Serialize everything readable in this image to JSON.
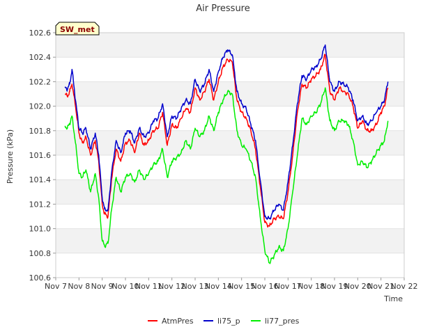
{
  "chart_data": {
    "type": "line",
    "title": "Air Pressure",
    "xlabel": "Time",
    "ylabel": "Pressure (kPa)",
    "ylim": [
      100.6,
      102.6
    ],
    "yticks": [
      "100.6",
      "100.8",
      "101.0",
      "101.2",
      "101.4",
      "101.6",
      "101.8",
      "102.0",
      "102.2",
      "102.4",
      "102.6"
    ],
    "xlim": [
      7,
      22
    ],
    "xticks": [
      {
        "v": 7,
        "label": "Nov 7"
      },
      {
        "v": 8,
        "label": "Nov 8"
      },
      {
        "v": 9,
        "label": "Nov 9"
      },
      {
        "v": 10,
        "label": "Nov 10"
      },
      {
        "v": 11,
        "label": "Nov 11"
      },
      {
        "v": 12,
        "label": "Nov 12"
      },
      {
        "v": 13,
        "label": "Nov 13"
      },
      {
        "v": 14,
        "label": "Nov 14"
      },
      {
        "v": 15,
        "label": "Nov 15"
      },
      {
        "v": 16,
        "label": "Nov 16"
      },
      {
        "v": 17,
        "label": "Nov 17"
      },
      {
        "v": 18,
        "label": "Nov 18"
      },
      {
        "v": 19,
        "label": "Nov 19"
      },
      {
        "v": 20,
        "label": "Nov 20"
      },
      {
        "v": 21,
        "label": "Nov 21"
      },
      {
        "v": 22,
        "label": "Nov 22"
      }
    ],
    "annotation": "SW_met",
    "legend_position": "bottom-center",
    "series": [
      {
        "name": "AtmPres",
        "color": "#ff0000",
        "x": [
          7.4,
          7.5,
          7.6,
          7.7,
          7.85,
          8.0,
          8.15,
          8.3,
          8.5,
          8.7,
          8.85,
          9.0,
          9.1,
          9.25,
          9.4,
          9.6,
          9.8,
          10.0,
          10.2,
          10.4,
          10.6,
          10.8,
          11.0,
          11.2,
          11.4,
          11.6,
          11.8,
          12.0,
          12.2,
          12.4,
          12.6,
          12.8,
          13.0,
          13.2,
          13.4,
          13.6,
          13.8,
          14.0,
          14.2,
          14.4,
          14.6,
          14.8,
          15.0,
          15.2,
          15.4,
          15.6,
          15.8,
          16.0,
          16.2,
          16.4,
          16.6,
          16.8,
          17.0,
          17.2,
          17.4,
          17.6,
          17.8,
          18.0,
          18.2,
          18.4,
          18.6,
          18.8,
          19.0,
          19.2,
          19.4,
          19.6,
          19.8,
          20.0,
          20.2,
          20.4,
          20.6,
          20.8,
          21.0,
          21.15,
          21.3
        ],
        "values": [
          102.1,
          102.08,
          102.12,
          102.18,
          102.0,
          101.78,
          101.7,
          101.75,
          101.6,
          101.72,
          101.55,
          101.2,
          101.12,
          101.1,
          101.4,
          101.65,
          101.55,
          101.7,
          101.72,
          101.62,
          101.78,
          101.68,
          101.72,
          101.8,
          101.82,
          101.95,
          101.68,
          101.85,
          101.82,
          101.9,
          101.98,
          101.95,
          102.15,
          102.05,
          102.12,
          102.22,
          102.05,
          102.2,
          102.32,
          102.38,
          102.36,
          102.05,
          101.95,
          101.9,
          101.8,
          101.65,
          101.35,
          101.05,
          101.02,
          101.08,
          101.1,
          101.08,
          101.3,
          101.6,
          101.95,
          102.18,
          102.15,
          102.22,
          102.25,
          102.3,
          102.42,
          102.12,
          102.05,
          102.15,
          102.12,
          102.1,
          102.0,
          101.82,
          101.88,
          101.8,
          101.8,
          101.85,
          101.95,
          102.0,
          102.15
        ]
      },
      {
        "name": "li75_p",
        "color": "#0000cc",
        "x": [
          7.4,
          7.5,
          7.6,
          7.7,
          7.85,
          8.0,
          8.15,
          8.3,
          8.5,
          8.7,
          8.85,
          9.0,
          9.1,
          9.25,
          9.4,
          9.6,
          9.8,
          10.0,
          10.2,
          10.4,
          10.6,
          10.8,
          11.0,
          11.2,
          11.4,
          11.6,
          11.8,
          12.0,
          12.2,
          12.4,
          12.6,
          12.8,
          13.0,
          13.2,
          13.4,
          13.6,
          13.8,
          14.0,
          14.2,
          14.4,
          14.6,
          14.8,
          15.0,
          15.2,
          15.4,
          15.6,
          15.8,
          16.0,
          16.2,
          16.4,
          16.6,
          16.8,
          17.0,
          17.2,
          17.4,
          17.6,
          17.8,
          18.0,
          18.2,
          18.4,
          18.6,
          18.8,
          19.0,
          19.2,
          19.4,
          19.6,
          19.8,
          20.0,
          20.2,
          20.4,
          20.6,
          20.8,
          21.0,
          21.15,
          21.3
        ],
        "values": [
          102.15,
          102.14,
          102.18,
          102.3,
          102.05,
          101.82,
          101.78,
          101.82,
          101.65,
          101.78,
          101.6,
          101.25,
          101.16,
          101.15,
          101.45,
          101.72,
          101.62,
          101.78,
          101.8,
          101.7,
          101.82,
          101.75,
          101.78,
          101.88,
          101.9,
          102.02,
          101.75,
          101.92,
          101.9,
          101.98,
          102.05,
          102.02,
          102.22,
          102.12,
          102.18,
          102.3,
          102.12,
          102.28,
          102.4,
          102.46,
          102.42,
          102.12,
          102.02,
          101.98,
          101.85,
          101.72,
          101.4,
          101.1,
          101.08,
          101.15,
          101.2,
          101.15,
          101.38,
          101.68,
          102.02,
          102.25,
          102.22,
          102.3,
          102.32,
          102.38,
          102.5,
          102.2,
          102.12,
          102.2,
          102.18,
          102.15,
          102.05,
          101.88,
          101.92,
          101.85,
          101.88,
          101.95,
          102.0,
          102.05,
          102.2
        ]
      },
      {
        "name": "li77_pres",
        "color": "#00ee00",
        "x": [
          7.4,
          7.5,
          7.6,
          7.7,
          7.85,
          8.0,
          8.15,
          8.3,
          8.5,
          8.7,
          8.85,
          9.0,
          9.1,
          9.25,
          9.4,
          9.6,
          9.8,
          10.0,
          10.2,
          10.4,
          10.6,
          10.8,
          11.0,
          11.2,
          11.4,
          11.6,
          11.8,
          12.0,
          12.2,
          12.4,
          12.6,
          12.8,
          13.0,
          13.2,
          13.4,
          13.6,
          13.8,
          14.0,
          14.2,
          14.4,
          14.6,
          14.8,
          15.0,
          15.2,
          15.4,
          15.6,
          15.8,
          16.0,
          16.2,
          16.4,
          16.6,
          16.8,
          17.0,
          17.2,
          17.4,
          17.6,
          17.8,
          18.0,
          18.2,
          18.4,
          18.6,
          18.8,
          19.0,
          19.2,
          19.4,
          19.6,
          19.8,
          20.0,
          20.2,
          20.4,
          20.6,
          20.8,
          21.0,
          21.15,
          21.3
        ],
        "values": [
          101.84,
          101.82,
          101.86,
          101.92,
          101.7,
          101.45,
          101.42,
          101.48,
          101.3,
          101.45,
          101.25,
          100.9,
          100.86,
          100.88,
          101.15,
          101.42,
          101.3,
          101.42,
          101.45,
          101.38,
          101.48,
          101.4,
          101.45,
          101.52,
          101.55,
          101.65,
          101.42,
          101.55,
          101.58,
          101.62,
          101.72,
          101.65,
          101.82,
          101.75,
          101.8,
          101.92,
          101.8,
          101.95,
          102.05,
          102.12,
          102.1,
          101.8,
          101.68,
          101.65,
          101.55,
          101.42,
          101.1,
          100.82,
          100.72,
          100.78,
          100.85,
          100.82,
          101.0,
          101.3,
          101.6,
          101.9,
          101.85,
          101.92,
          101.95,
          102.02,
          102.15,
          101.88,
          101.8,
          101.88,
          101.88,
          101.85,
          101.72,
          101.52,
          101.55,
          101.5,
          101.55,
          101.62,
          101.68,
          101.72,
          101.88
        ]
      }
    ]
  }
}
